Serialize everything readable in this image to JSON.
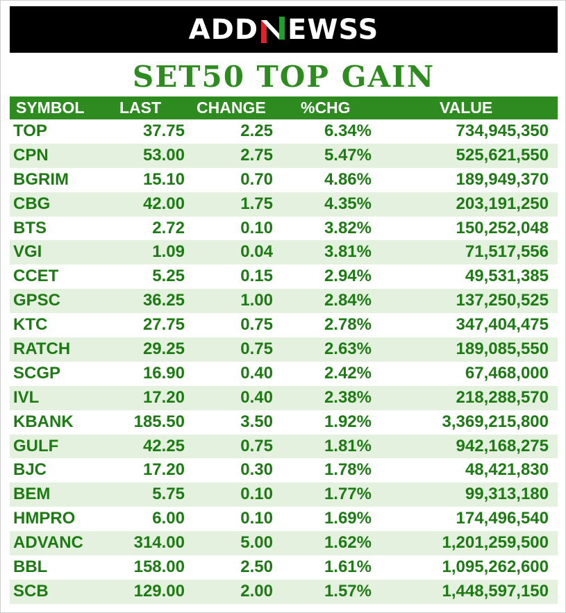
{
  "logo": {
    "text_left": "ADD",
    "text_right": "EWSS",
    "mark": "N",
    "colors": {
      "red": "#e0202a",
      "green": "#1fa02c"
    }
  },
  "title": "SET50 TOP GAIN",
  "table": {
    "columns": [
      "SYMBOL",
      "LAST",
      "CHANGE",
      "%CHG",
      "VALUE"
    ],
    "rows": [
      [
        "TOP",
        "37.75",
        "2.25",
        "6.34%",
        "734,945,350"
      ],
      [
        "CPN",
        "53.00",
        "2.75",
        "5.47%",
        "525,621,550"
      ],
      [
        "BGRIM",
        "15.10",
        "0.70",
        "4.86%",
        "189,949,370"
      ],
      [
        "CBG",
        "42.00",
        "1.75",
        "4.35%",
        "203,191,250"
      ],
      [
        "BTS",
        "2.72",
        "0.10",
        "3.82%",
        "150,252,048"
      ],
      [
        "VGI",
        "1.09",
        "0.04",
        "3.81%",
        "71,517,556"
      ],
      [
        "CCET",
        "5.25",
        "0.15",
        "2.94%",
        "49,531,385"
      ],
      [
        "GPSC",
        "36.25",
        "1.00",
        "2.84%",
        "137,250,525"
      ],
      [
        "KTC",
        "27.75",
        "0.75",
        "2.78%",
        "347,404,475"
      ],
      [
        "RATCH",
        "29.25",
        "0.75",
        "2.63%",
        "189,085,550"
      ],
      [
        "SCGP",
        "16.90",
        "0.40",
        "2.42%",
        "67,468,000"
      ],
      [
        "IVL",
        "17.20",
        "0.40",
        "2.38%",
        "218,288,570"
      ],
      [
        "KBANK",
        "185.50",
        "3.50",
        "1.92%",
        "3,369,215,800"
      ],
      [
        "GULF",
        "42.25",
        "0.75",
        "1.81%",
        "942,168,275"
      ],
      [
        "BJC",
        "17.20",
        "0.30",
        "1.78%",
        "48,421,830"
      ],
      [
        "BEM",
        "5.75",
        "0.10",
        "1.77%",
        "99,313,180"
      ],
      [
        "HMPRO",
        "6.00",
        "0.10",
        "1.69%",
        "174,496,540"
      ],
      [
        "ADVANC",
        "314.00",
        "5.00",
        "1.62%",
        "1,201,259,500"
      ],
      [
        "BBL",
        "158.00",
        "2.50",
        "1.61%",
        "1,095,262,600"
      ],
      [
        "SCB",
        "129.00",
        "2.00",
        "1.57%",
        "1,448,597,150"
      ]
    ]
  },
  "colors": {
    "header_bg": "#2e8b1f",
    "text_green": "#1e7a14",
    "stripe": "#e5f1df",
    "banner_bg": "#000000"
  }
}
